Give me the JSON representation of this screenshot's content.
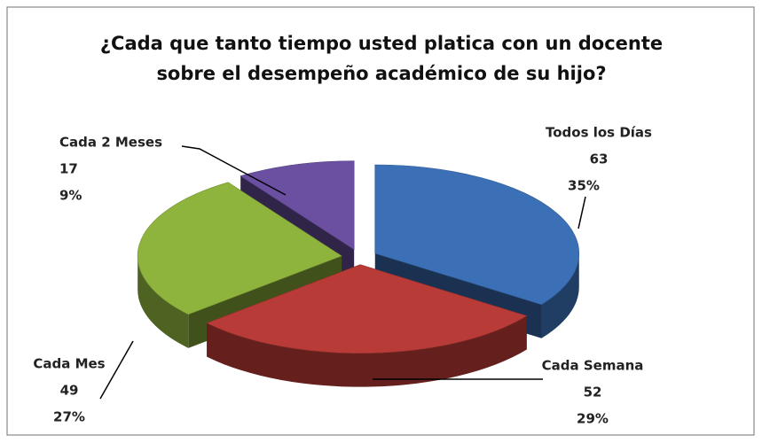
{
  "chart_data": {
    "type": "pie3d",
    "title": [
      "¿Cada que tanto tiempo usted platica con un docente",
      "sobre el desempeño académico de su hijo?"
    ],
    "categories": [
      "Todos los Días",
      "Cada Semana",
      "Cada Mes",
      "Cada 2 Meses"
    ],
    "values": [
      63,
      52,
      49,
      17
    ],
    "percent_labels": [
      "35%",
      "29%",
      "27%",
      "9%"
    ],
    "colors": [
      "#3b6fb6",
      "#b83b37",
      "#8fb43d",
      "#6b50a2"
    ]
  }
}
